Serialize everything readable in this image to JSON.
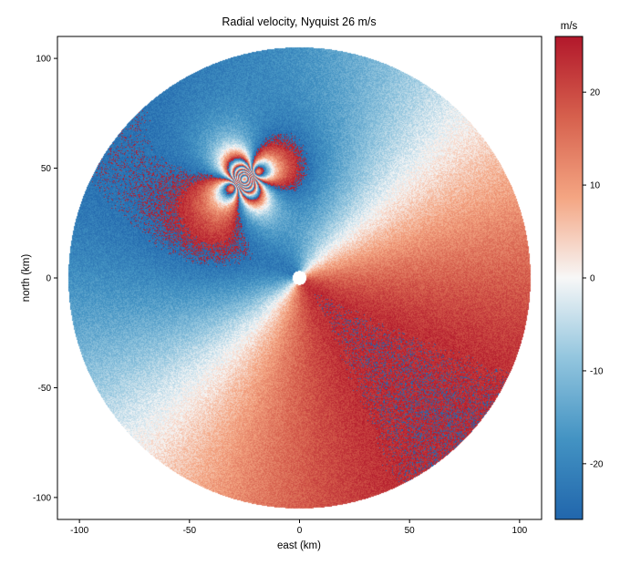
{
  "chart_data": {
    "type": "heatmap",
    "title": "Radial velocity, Nyquist 26 m/s",
    "xlabel": "east (km)",
    "ylabel": "north (km)",
    "xlim": [
      -110,
      110
    ],
    "ylim": [
      -110,
      110
    ],
    "x_ticks": [
      -100,
      -50,
      0,
      50,
      100
    ],
    "y_ticks": [
      -100,
      -50,
      0,
      50,
      100
    ],
    "x_tick_labels": [
      "-100",
      "-50",
      "0",
      "50",
      "100"
    ],
    "y_tick_labels": [
      "-100",
      "-50",
      "0",
      "50",
      "100"
    ],
    "radar_range_km": 105,
    "nyquist_velocity": 26,
    "colorbar": {
      "label": "m/s",
      "vmin": -26,
      "vmax": 26,
      "ticks": [
        -20,
        -10,
        0,
        10,
        20
      ],
      "tick_labels": [
        "-20",
        "-10",
        "0",
        "10",
        "20"
      ],
      "colors": [
        "#2166ac",
        "#4393c3",
        "#92c5de",
        "#f7f7f7",
        "#f4a582",
        "#d6604d",
        "#b2182b"
      ]
    },
    "background_wind": {
      "direction_from_deg": 315,
      "speed_ms": 25
    },
    "vortices": [
      {
        "x_km": -28,
        "y_km": 43,
        "rotation": "cyclonic"
      },
      {
        "x_km": -22,
        "y_km": 47,
        "rotation": "anticyclonic"
      }
    ],
    "grid": false
  }
}
